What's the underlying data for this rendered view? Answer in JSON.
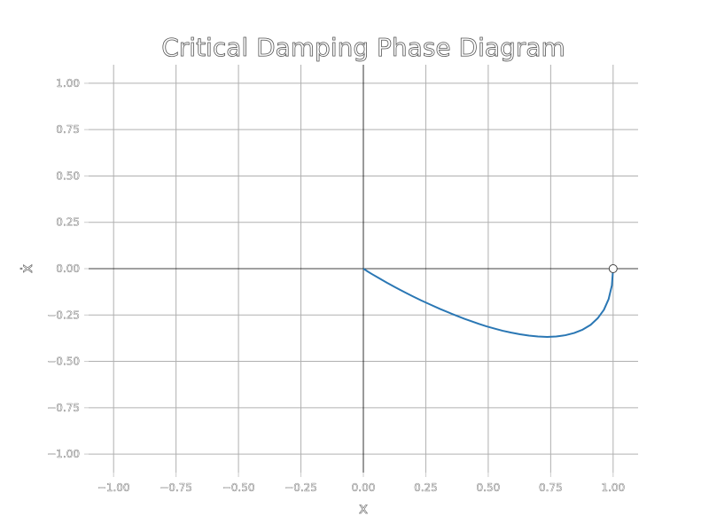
{
  "chart_data": {
    "type": "line",
    "title": "Critical Damping Phase Diagram",
    "xlabel": "x",
    "ylabel": "ẋ",
    "xlim": [
      -1.1,
      1.1
    ],
    "ylim": [
      -1.1,
      1.1
    ],
    "xticks": [
      -1.0,
      -0.75,
      -0.5,
      -0.25,
      0.0,
      0.25,
      0.5,
      0.75,
      1.0
    ],
    "yticks": [
      -1.0,
      -0.75,
      -0.5,
      -0.25,
      0.0,
      0.25,
      0.5,
      0.75,
      1.0
    ],
    "xtick_labels": [
      "−1.00",
      "−0.75",
      "−0.50",
      "−0.25",
      "0.00",
      "0.25",
      "0.50",
      "0.75",
      "1.00"
    ],
    "ytick_labels": [
      "−1.00",
      "−0.75",
      "−0.50",
      "−0.25",
      "0.00",
      "0.25",
      "0.50",
      "0.75",
      "1.00"
    ],
    "grid": true,
    "series": [
      {
        "color": "#2a77b4",
        "points": [
          [
            1.0,
            0.0
          ],
          [
            0.995,
            -0.091
          ],
          [
            0.982,
            -0.164
          ],
          [
            0.963,
            -0.222
          ],
          [
            0.938,
            -0.268
          ],
          [
            0.91,
            -0.303
          ],
          [
            0.878,
            -0.329
          ],
          [
            0.844,
            -0.347
          ],
          [
            0.809,
            -0.359
          ],
          [
            0.772,
            -0.366
          ],
          [
            0.736,
            -0.368
          ],
          [
            0.699,
            -0.366
          ],
          [
            0.663,
            -0.361
          ],
          [
            0.627,
            -0.354
          ],
          [
            0.592,
            -0.345
          ],
          [
            0.558,
            -0.335
          ],
          [
            0.525,
            -0.323
          ],
          [
            0.493,
            -0.311
          ],
          [
            0.463,
            -0.298
          ],
          [
            0.434,
            -0.284
          ],
          [
            0.406,
            -0.271
          ],
          [
            0.355,
            -0.244
          ],
          [
            0.308,
            -0.218
          ],
          [
            0.267,
            -0.193
          ],
          [
            0.231,
            -0.171
          ],
          [
            0.199,
            -0.15
          ],
          [
            0.171,
            -0.131
          ],
          [
            0.147,
            -0.114
          ],
          [
            0.126,
            -0.099
          ],
          [
            0.092,
            -0.074
          ],
          [
            0.066,
            -0.054
          ],
          [
            0.034,
            -0.029
          ],
          [
            0.017,
            -0.015
          ],
          [
            0.008,
            -0.007
          ],
          [
            0.0,
            0.0
          ]
        ]
      }
    ],
    "start_marker": {
      "x": 1.0,
      "y": 0.0
    }
  }
}
